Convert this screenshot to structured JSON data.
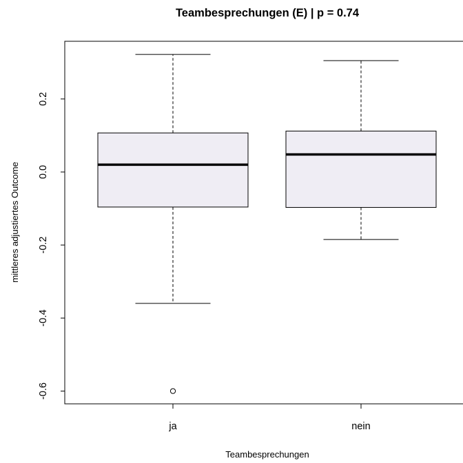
{
  "chart_data": {
    "type": "boxplot",
    "title": "Teambesprechungen (E) | p = 0.74",
    "xlabel": "Teambesprechungen",
    "ylabel": "mittleres adjustiertes Outcome",
    "categories": [
      "ja",
      "nein"
    ],
    "boxes": [
      {
        "category": "ja",
        "whisker_low": -0.36,
        "q1": -0.096,
        "median": 0.02,
        "q3": 0.107,
        "whisker_high": 0.322,
        "outliers": [
          -0.6
        ]
      },
      {
        "category": "nein",
        "whisker_low": -0.185,
        "q1": -0.097,
        "median": 0.048,
        "q3": 0.112,
        "whisker_high": 0.305,
        "outliers": []
      }
    ],
    "ylim": [
      -0.635,
      0.358
    ],
    "yticks": [
      -0.6,
      -0.4,
      -0.2,
      0.0,
      0.2
    ],
    "ytick_labels": [
      "-0.6",
      "-0.4",
      "-0.2",
      "0.0",
      "0.2"
    ],
    "grid": false,
    "box_fill": "#efedf4",
    "line_color": "#000000"
  }
}
